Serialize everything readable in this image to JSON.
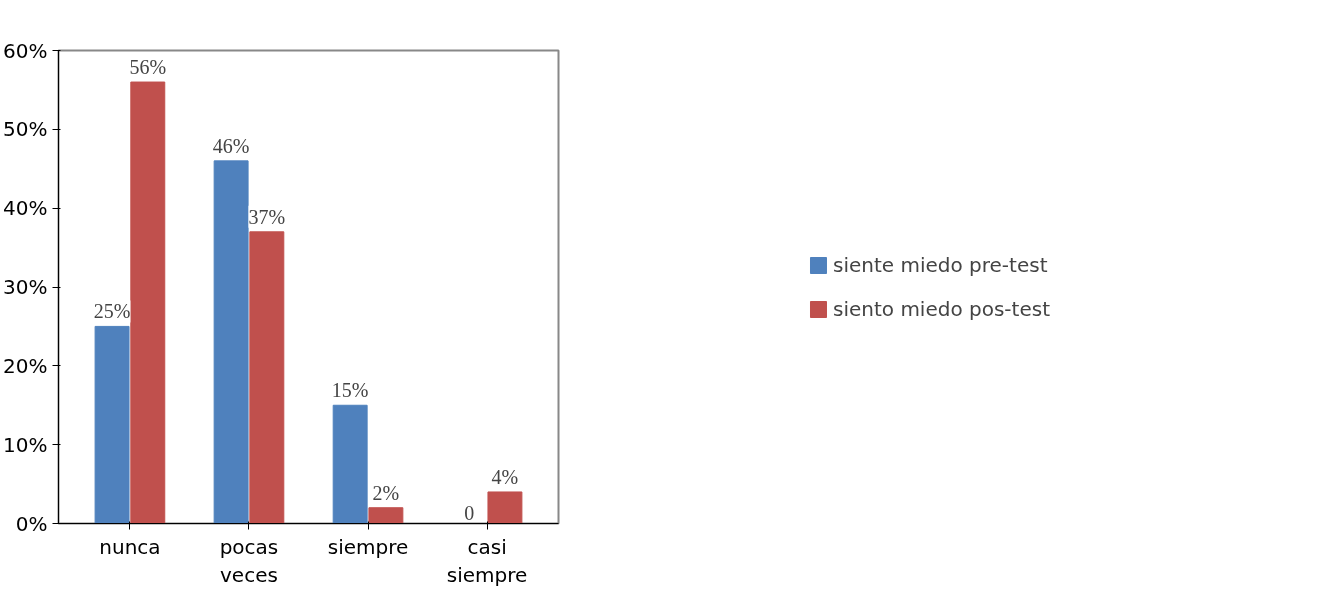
{
  "chart_data": {
    "type": "bar",
    "categories": [
      "nunca",
      "pocas veces",
      "siempre",
      "casi siempre"
    ],
    "series": [
      {
        "name": "siente miedo pre-test",
        "color": "#4f81bd",
        "values": [
          25,
          46,
          15,
          0
        ],
        "value_labels": [
          "25%",
          "46%",
          "15%",
          "0"
        ]
      },
      {
        "name": "siento miedo pos-test",
        "color": "#c0504d",
        "values": [
          56,
          37,
          2,
          4
        ],
        "value_labels": [
          "56%",
          "37%",
          "2%",
          "4%"
        ]
      }
    ],
    "ylim": [
      0,
      60
    ],
    "yticks": [
      {
        "value": 0,
        "label": "0%"
      },
      {
        "value": 10,
        "label": "10%"
      },
      {
        "value": 20,
        "label": "20%"
      },
      {
        "value": 30,
        "label": "30%"
      },
      {
        "value": 40,
        "label": "40%"
      },
      {
        "value": 50,
        "label": "50%"
      },
      {
        "value": 60,
        "label": "60%"
      }
    ],
    "grid": false,
    "legend": "right"
  }
}
